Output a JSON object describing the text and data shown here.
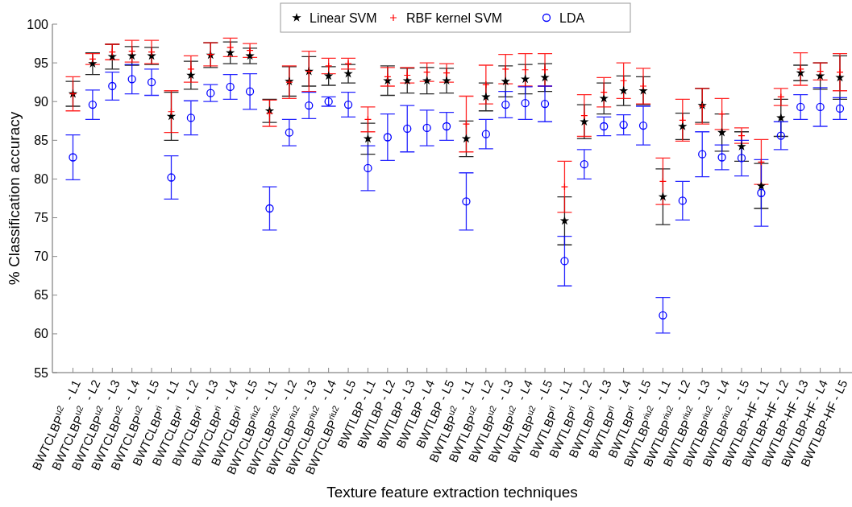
{
  "chart_data": {
    "type": "scatter",
    "xlabel": "Texture feature extraction techniques",
    "ylabel": "% Classification accuracy",
    "categories": [
      "BWTCLBP$^{u2}$ - L1",
      "BWTCLBP$^{u2}$ - L2",
      "BWTCLBP$^{u2}$ - L3",
      "BWTCLBP$^{u2}$ - L4",
      "BWTCLBP$^{u2}$ - L5",
      "BWTCLBP$^{ri}$ - L1",
      "BWTCLBP$^{ri}$ - L2",
      "BWTCLBP$^{ri}$ - L3",
      "BWTCLBP$^{ri}$ - L4",
      "BWTCLBP$^{ri}$ - L5",
      "BWTCLBP$^{riu2}$ - L1",
      "BWTCLBP$^{riu2}$ - L2",
      "BWTCLBP$^{riu2}$ - L3",
      "BWTCLBP$^{riu2}$ - L4",
      "BWTCLBP$^{riu2}$ - L5",
      "BWTLBP - L1",
      "BWTLBP - L2",
      "BWTLBP - L3",
      "BWTLBP - L4",
      "BWTLBP - L5",
      "BWTLBP$^{u2}$ - L1",
      "BWTLBP$^{u2}$ - L2",
      "BWTLBP$^{u2}$ - L3",
      "BWTLBP$^{u2}$ - L4",
      "BWTLBP$^{u2}$ - L5",
      "BWTLBP$^{ri}$ - L1",
      "BWTLBP$^{ri}$ - L2",
      "BWTLBP$^{ri}$ - L3",
      "BWTLBP$^{ri}$ - L4",
      "BWTLBP$^{ri}$ - L5",
      "BWTLBP$^{riu2}$ - L1",
      "BWTLBP$^{riu2}$ - L2",
      "BWTLBP$^{riu2}$ - L3",
      "BWTLBP$^{riu2}$ - L4",
      "BWTLBP$^{riu2}$ - L5",
      "BWTLBP-HF - L1",
      "BWTLBP-HF - L2",
      "BWTLBP-HF - L3",
      "BWTLBP-HF - L4",
      "BWTLBP-HF - L5"
    ],
    "ylim": [
      55,
      100
    ],
    "yticks": [
      55,
      60,
      65,
      70,
      75,
      80,
      85,
      90,
      95,
      100
    ],
    "legend": "top",
    "grid": false,
    "series": [
      {
        "name": "Linear SVM",
        "color": "#000000",
        "marker": "star",
        "values": [
          91.0,
          94.9,
          95.8,
          95.9,
          95.9,
          88.1,
          93.4,
          96.0,
          96.3,
          95.9,
          88.8,
          92.6,
          93.9,
          93.3,
          93.6,
          85.2,
          92.7,
          92.7,
          92.7,
          92.7,
          85.2,
          90.6,
          92.6,
          92.9,
          93.1,
          74.6,
          87.4,
          90.4,
          91.4,
          91.4,
          77.7,
          86.8,
          89.5,
          86.0,
          84.2,
          79.1,
          87.9,
          93.7,
          93.3,
          93.1
        ],
        "errors": [
          1.6,
          1.4,
          1.6,
          1.2,
          1.1,
          3.1,
          1.8,
          1.6,
          1.4,
          1.0,
          1.5,
          1.9,
          1.9,
          1.2,
          1.2,
          2.0,
          1.9,
          1.6,
          1.7,
          1.6,
          2.3,
          1.8,
          2.0,
          1.9,
          1.8,
          3.1,
          2.2,
          2.0,
          1.9,
          1.8,
          3.6,
          1.7,
          2.2,
          2.4,
          1.9,
          2.9,
          2.4,
          1.0,
          1.7,
          2.8
        ]
      },
      {
        "name": "RBF kernel SVM",
        "color": "#ff0000",
        "marker": "cross",
        "values": [
          91.0,
          95.5,
          96.4,
          96.5,
          96.4,
          88.7,
          94.2,
          96.1,
          97.0,
          96.6,
          88.5,
          92.5,
          93.9,
          94.6,
          94.9,
          87.7,
          93.2,
          93.4,
          93.8,
          93.7,
          87.1,
          92.2,
          94.2,
          94.1,
          94.1,
          79.0,
          88.2,
          91.2,
          92.7,
          92.0,
          79.7,
          87.6,
          89.4,
          88.4,
          85.6,
          82.2,
          90.6,
          94.2,
          93.9,
          93.8
        ],
        "errors": [
          2.2,
          0.7,
          1.0,
          1.4,
          1.5,
          2.7,
          1.7,
          1.5,
          1.2,
          0.9,
          1.7,
          2.1,
          2.6,
          1.0,
          0.7,
          1.6,
          1.2,
          1.0,
          1.2,
          1.2,
          3.6,
          2.5,
          1.9,
          2.1,
          2.1,
          3.3,
          2.7,
          1.9,
          2.3,
          2.3,
          3.0,
          2.7,
          2.3,
          2.0,
          1.0,
          2.9,
          1.1,
          2.1,
          1.1,
          2.4
        ]
      },
      {
        "name": "LDA",
        "color": "#0000ff",
        "marker": "circle",
        "values": [
          82.8,
          89.6,
          92.0,
          92.9,
          92.5,
          80.2,
          87.9,
          91.1,
          91.9,
          91.3,
          76.2,
          86.0,
          89.5,
          90.0,
          89.6,
          81.4,
          85.4,
          86.5,
          86.6,
          86.8,
          77.1,
          85.8,
          89.6,
          89.8,
          89.7,
          69.4,
          81.9,
          86.8,
          87.0,
          86.9,
          62.4,
          77.2,
          83.2,
          82.8,
          82.7,
          78.2,
          85.6,
          89.3,
          89.3,
          89.1
        ],
        "errors": [
          2.9,
          1.9,
          1.8,
          1.9,
          1.7,
          2.8,
          2.2,
          1.1,
          1.6,
          2.3,
          2.8,
          1.7,
          1.7,
          0.6,
          1.6,
          2.9,
          3.0,
          3.0,
          2.3,
          1.8,
          3.7,
          1.9,
          1.7,
          2.1,
          2.3,
          3.2,
          1.9,
          1.2,
          1.3,
          2.5,
          2.3,
          2.5,
          2.9,
          1.6,
          2.3,
          4.3,
          1.8,
          1.6,
          2.5,
          1.4
        ]
      }
    ]
  }
}
